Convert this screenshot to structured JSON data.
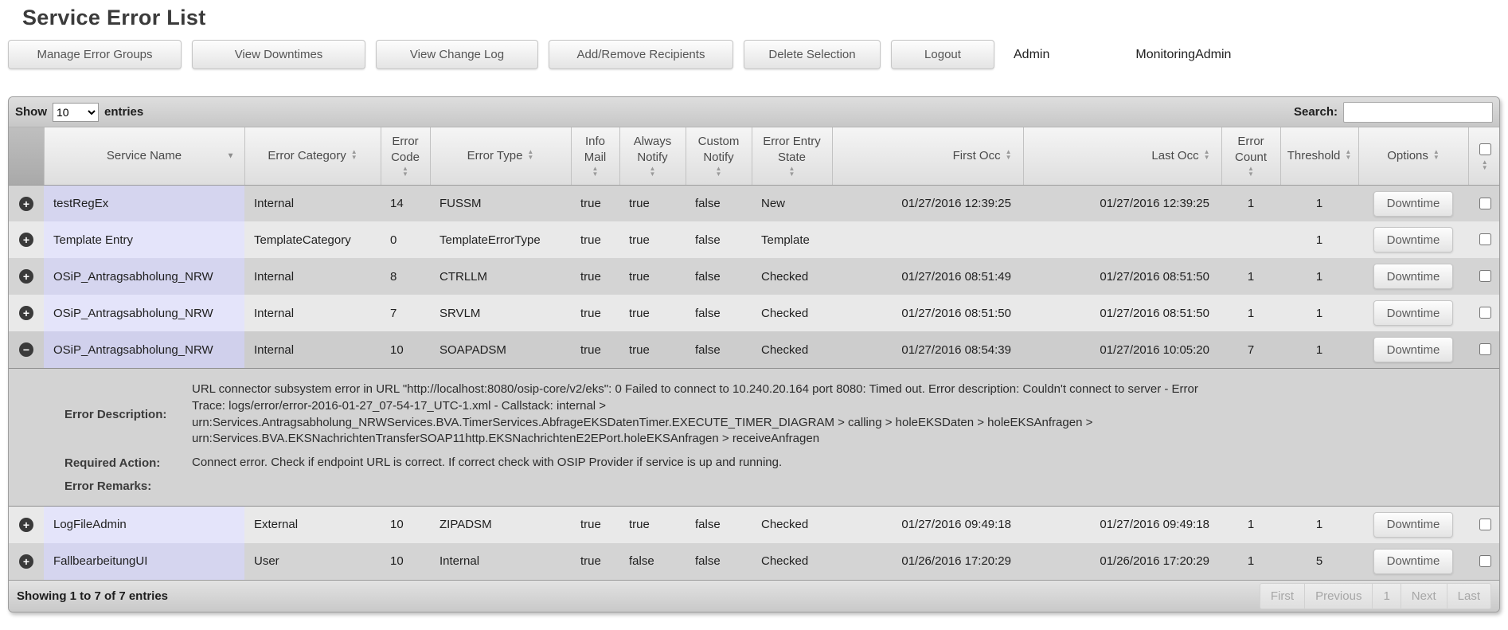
{
  "page": {
    "title": "Service Error List"
  },
  "header": {
    "buttons": [
      "Manage Error Groups",
      "View Downtimes",
      "View Change Log",
      "Add/Remove Recipients",
      "Delete Selection",
      "Logout"
    ],
    "role_label": "Admin",
    "user_label": "MonitoringAdmin"
  },
  "controls": {
    "show_label": "Show",
    "page_size": "10",
    "entries_label": "entries",
    "search_label": "Search:",
    "search_value": ""
  },
  "icons": {
    "expand": "+",
    "collapse": "−",
    "sort_asc": "▲",
    "sort_desc": "▼"
  },
  "colors": {
    "row_odd": "#d4d4d4",
    "row_even": "#e9e9e9",
    "sorted_column_odd": "#d5d5ef",
    "sorted_column_even": "#e4e4fa",
    "expander_background": "#3a3a3a"
  },
  "table": {
    "columns": [
      {
        "key": "expand",
        "label": "",
        "sort": "none"
      },
      {
        "key": "service_name",
        "label": "Service Name",
        "sort": "desc"
      },
      {
        "key": "error_category",
        "label": "Error Category",
        "sort": "both"
      },
      {
        "key": "error_code",
        "label": "Error Code",
        "sort": "both"
      },
      {
        "key": "error_type",
        "label": "Error Type",
        "sort": "both"
      },
      {
        "key": "info_mail",
        "label": "Info Mail",
        "sort": "both"
      },
      {
        "key": "always_notify",
        "label": "Always Notify",
        "sort": "both"
      },
      {
        "key": "custom_notify",
        "label": "Custom Notify",
        "sort": "both"
      },
      {
        "key": "error_entry_state",
        "label": "Error Entry State",
        "sort": "both"
      },
      {
        "key": "first_occ",
        "label": "First Occ",
        "sort": "both",
        "align": "right"
      },
      {
        "key": "last_occ",
        "label": "Last Occ",
        "sort": "both",
        "align": "right"
      },
      {
        "key": "error_count",
        "label": "Error Count",
        "sort": "both"
      },
      {
        "key": "threshold",
        "label": "Threshold",
        "sort": "both"
      },
      {
        "key": "options",
        "label": "Options",
        "sort": "both"
      },
      {
        "key": "select",
        "label": "",
        "sort": "both",
        "type": "checkbox"
      }
    ],
    "rows": [
      {
        "service_name": "testRegEx",
        "error_category": "Internal",
        "error_code": "14",
        "error_type": "FUSSM",
        "info_mail": "true",
        "always_notify": "true",
        "custom_notify": "false",
        "error_entry_state": "New",
        "first_occ": "01/27/2016 12:39:25",
        "last_occ": "01/27/2016 12:39:25",
        "error_count": "1",
        "threshold": "1",
        "options_label": "Downtime",
        "selected": false,
        "expanded": false
      },
      {
        "service_name": "Template Entry",
        "error_category": "TemplateCategory",
        "error_code": "0",
        "error_type": "TemplateErrorType",
        "info_mail": "true",
        "always_notify": "true",
        "custom_notify": "false",
        "error_entry_state": "Template",
        "first_occ": "",
        "last_occ": "",
        "error_count": "",
        "threshold": "1",
        "options_label": "Downtime",
        "selected": false,
        "expanded": false
      },
      {
        "service_name": "OSiP_Antragsabholung_NRW",
        "error_category": "Internal",
        "error_code": "8",
        "error_type": "CTRLLM",
        "info_mail": "true",
        "always_notify": "true",
        "custom_notify": "false",
        "error_entry_state": "Checked",
        "first_occ": "01/27/2016 08:51:49",
        "last_occ": "01/27/2016 08:51:50",
        "error_count": "1",
        "threshold": "1",
        "options_label": "Downtime",
        "selected": false,
        "expanded": false
      },
      {
        "service_name": "OSiP_Antragsabholung_NRW",
        "error_category": "Internal",
        "error_code": "7",
        "error_type": "SRVLM",
        "info_mail": "true",
        "always_notify": "true",
        "custom_notify": "false",
        "error_entry_state": "Checked",
        "first_occ": "01/27/2016 08:51:50",
        "last_occ": "01/27/2016 08:51:50",
        "error_count": "1",
        "threshold": "1",
        "options_label": "Downtime",
        "selected": false,
        "expanded": false
      },
      {
        "service_name": "OSiP_Antragsabholung_NRW",
        "error_category": "Internal",
        "error_code": "10",
        "error_type": "SOAPADSM",
        "info_mail": "true",
        "always_notify": "true",
        "custom_notify": "false",
        "error_entry_state": "Checked",
        "first_occ": "01/27/2016 08:54:39",
        "last_occ": "01/27/2016 10:05:20",
        "error_count": "7",
        "threshold": "1",
        "options_label": "Downtime",
        "selected": false,
        "expanded": true
      },
      {
        "service_name": "LogFileAdmin",
        "error_category": "External",
        "error_code": "10",
        "error_type": "ZIPADSM",
        "info_mail": "true",
        "always_notify": "true",
        "custom_notify": "false",
        "error_entry_state": "Checked",
        "first_occ": "01/27/2016 09:49:18",
        "last_occ": "01/27/2016 09:49:18",
        "error_count": "1",
        "threshold": "1",
        "options_label": "Downtime",
        "selected": false,
        "expanded": false
      },
      {
        "service_name": "FallbearbeitungUI",
        "error_category": "User",
        "error_code": "10",
        "error_type": "Internal",
        "info_mail": "true",
        "always_notify": "false",
        "custom_notify": "false",
        "error_entry_state": "Checked",
        "first_occ": "01/26/2016 17:20:29",
        "last_occ": "01/26/2016 17:20:29",
        "error_count": "1",
        "threshold": "5",
        "options_label": "Downtime",
        "selected": false,
        "expanded": false
      }
    ]
  },
  "detail": {
    "fields": [
      {
        "label": "Error Description:",
        "value": "URL connector subsystem error in URL \"http://localhost:8080/osip-core/v2/eks\": 0 Failed to connect to 10.240.20.164 port 8080: Timed out. Error description: Couldn't connect to server - Error Trace: logs/error/error-2016-01-27_07-54-17_UTC-1.xml - Callstack: internal > urn:Services.Antragsabholung_NRWServices.BVA.TimerServices.AbfrageEKSDatenTimer.EXECUTE_TIMER_DIAGRAM > calling > holeEKSDaten > holeEKSAnfragen > urn:Services.BVA.EKSNachrichtenTransferSOAP11http.EKSNachrichtenE2EPort.holeEKSAnfragen > receiveAnfragen"
      },
      {
        "label": "Required Action:",
        "value": "Connect error. Check if endpoint URL is correct. If correct check with OSIP Provider if service is up and running."
      },
      {
        "label": "Error Remarks:",
        "value": ""
      }
    ]
  },
  "footer": {
    "info": "Showing 1 to 7 of 7 entries",
    "pagination": [
      "First",
      "Previous",
      "1",
      "Next",
      "Last"
    ]
  }
}
